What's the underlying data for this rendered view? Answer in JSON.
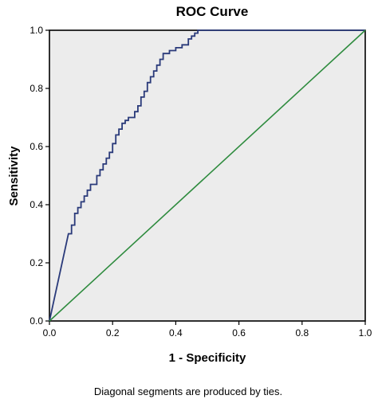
{
  "chart_data": {
    "type": "line",
    "title": "ROC Curve",
    "xlabel": "1 - Specificity",
    "ylabel": "Sensitivity",
    "xlim": [
      0.0,
      1.0
    ],
    "ylim": [
      0.0,
      1.0
    ],
    "x_ticks": [
      "0.0",
      "0.2",
      "0.4",
      "0.6",
      "0.8",
      "1.0"
    ],
    "y_ticks": [
      "0.0",
      "0.2",
      "0.4",
      "0.6",
      "0.8",
      "1.0"
    ],
    "grid": false,
    "legend": "none",
    "series": [
      {
        "color": "#2a3a7a",
        "x": [
          0.0,
          0.06,
          0.07,
          0.07,
          0.08,
          0.08,
          0.09,
          0.09,
          0.1,
          0.1,
          0.11,
          0.11,
          0.12,
          0.12,
          0.13,
          0.13,
          0.15,
          0.15,
          0.16,
          0.16,
          0.17,
          0.17,
          0.18,
          0.18,
          0.19,
          0.19,
          0.2,
          0.2,
          0.21,
          0.21,
          0.22,
          0.22,
          0.23,
          0.23,
          0.24,
          0.24,
          0.25,
          0.25,
          0.27,
          0.27,
          0.28,
          0.28,
          0.29,
          0.29,
          0.3,
          0.3,
          0.31,
          0.31,
          0.32,
          0.32,
          0.33,
          0.33,
          0.34,
          0.34,
          0.35,
          0.35,
          0.36,
          0.36,
          0.38,
          0.38,
          0.4,
          0.4,
          0.42,
          0.42,
          0.44,
          0.44,
          0.45,
          0.45,
          0.46,
          0.46,
          0.47,
          0.47,
          1.0
        ],
        "y": [
          0.0,
          0.3,
          0.3,
          0.33,
          0.33,
          0.37,
          0.37,
          0.39,
          0.39,
          0.41,
          0.41,
          0.43,
          0.43,
          0.45,
          0.45,
          0.47,
          0.47,
          0.5,
          0.5,
          0.52,
          0.52,
          0.54,
          0.54,
          0.56,
          0.56,
          0.58,
          0.58,
          0.61,
          0.61,
          0.64,
          0.64,
          0.66,
          0.66,
          0.68,
          0.68,
          0.69,
          0.69,
          0.7,
          0.7,
          0.72,
          0.72,
          0.74,
          0.74,
          0.77,
          0.77,
          0.79,
          0.79,
          0.82,
          0.82,
          0.84,
          0.84,
          0.86,
          0.86,
          0.88,
          0.88,
          0.9,
          0.9,
          0.92,
          0.92,
          0.93,
          0.93,
          0.94,
          0.94,
          0.95,
          0.95,
          0.97,
          0.97,
          0.98,
          0.98,
          0.99,
          0.99,
          1.0,
          1.0
        ]
      },
      {
        "color": "#2e8b3e",
        "x": [
          0.0,
          1.0
        ],
        "y": [
          0.0,
          1.0
        ]
      }
    ],
    "footnote": "Diagonal segments are produced by ties."
  }
}
